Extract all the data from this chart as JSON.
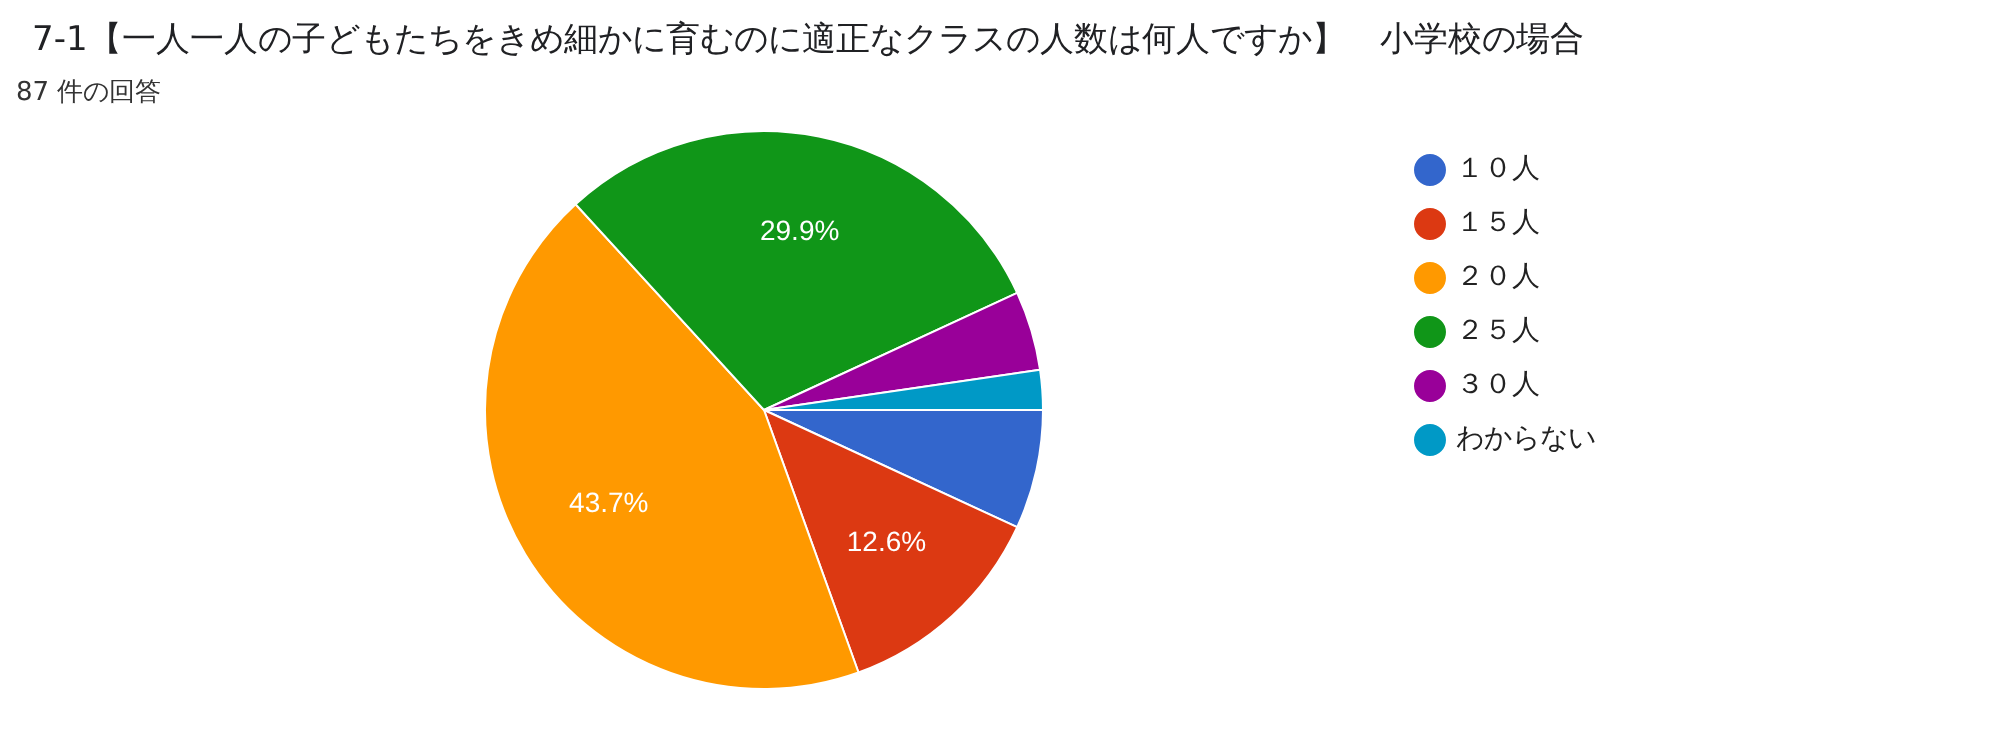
{
  "chart_data": {
    "type": "pie",
    "title": "7-1【一人一人の子どもたちをきめ細かに育むのに適正なクラスの人数は何人ですか】　小学校の場合",
    "subtitle": "87 件の回答",
    "categories": [
      "１０人",
      "１５人",
      "２０人",
      "２５人",
      "３０人",
      "わからない"
    ],
    "values": [
      6.9,
      12.6,
      43.7,
      29.9,
      4.6,
      2.3
    ],
    "colors": [
      "#3366cc",
      "#dc3912",
      "#ff9900",
      "#109618",
      "#990099",
      "#0099c6"
    ],
    "value_labels": [
      null,
      "12.6%",
      "43.7%",
      "29.9%",
      null,
      null
    ],
    "legend": "right"
  }
}
